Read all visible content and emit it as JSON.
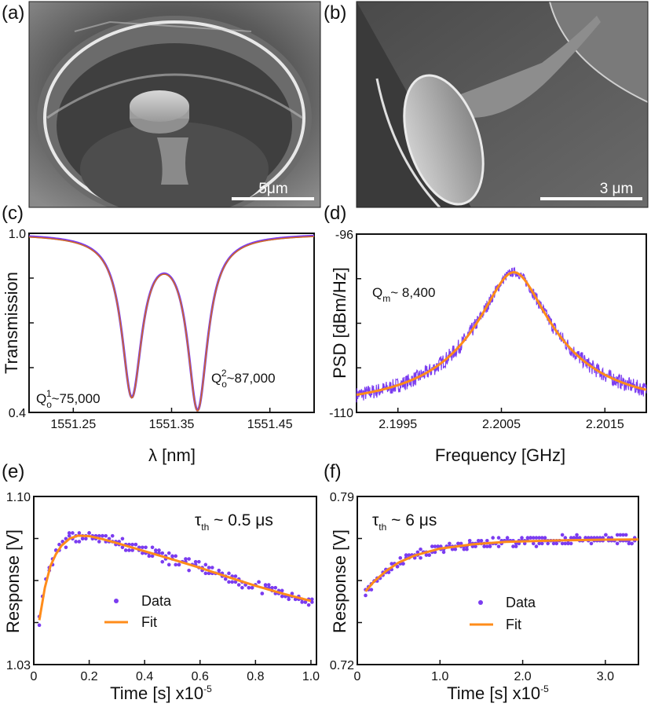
{
  "panels": {
    "a": {
      "label": "(a)",
      "scale_bar": "5μm"
    },
    "b": {
      "label": "(b)",
      "scale_bar": "3 μm"
    },
    "c": {
      "label": "(c)"
    },
    "d": {
      "label": "(d)"
    },
    "e": {
      "label": "(e)"
    },
    "f": {
      "label": "(f)"
    }
  },
  "colors": {
    "data": "#7b3cf0",
    "fit": "#ff8c1a",
    "fit_c": "#d2691e"
  },
  "chart_data": [
    {
      "panel": "c",
      "type": "line",
      "xlabel": "λ [nm]",
      "ylabel": "Transmission",
      "xlim": [
        1551.205,
        1551.495
      ],
      "ylim": [
        0.4,
        1.0
      ],
      "xticks": [
        1551.25,
        1551.35,
        1551.45
      ],
      "xtick_labels": [
        "1551.25",
        "1551.35",
        "1551.45"
      ],
      "yticks": [
        0.4,
        1.0
      ],
      "ytick_labels": [
        "0.4",
        "1.0"
      ],
      "model": {
        "baseline": 1.0,
        "dips": [
          {
            "center": 1551.3095,
            "depth": 0.53,
            "width": 0.0125
          },
          {
            "center": 1551.3765,
            "depth": 0.575,
            "width": 0.0125
          }
        ]
      },
      "annotations": [
        {
          "text_main": "Q",
          "text_sub": "o",
          "text_sup": "1",
          "text_rest": "~75,000"
        },
        {
          "text_main": "Q",
          "text_sub": "o",
          "text_sup": "2",
          "text_rest": "~87,000"
        }
      ]
    },
    {
      "panel": "d",
      "type": "line",
      "xlabel": "Frequency [GHz]",
      "ylabel": "PSD [dBm/Hz]",
      "xlim": [
        2.1991,
        2.2019
      ],
      "ylim": [
        -110,
        -96
      ],
      "xticks": [
        2.1995,
        2.2005,
        2.2015
      ],
      "xtick_labels": [
        "2.1995",
        "2.2005",
        "2.2015"
      ],
      "yticks": [
        -110,
        -96
      ],
      "ytick_labels": [
        "-110",
        "-96"
      ],
      "model": {
        "center": 2.20062,
        "peak_dbm": -99.0,
        "floor_dbm": -109.8,
        "hwhm": 0.00026
      },
      "annotations": [
        {
          "text_main": "Q",
          "text_sub": "m",
          "text_rest": "~ 8,400"
        }
      ]
    },
    {
      "panel": "e",
      "type": "scatter",
      "xlabel": "Time [s]  x10",
      "xlabel_exp": "-5",
      "ylabel": "Response [V]",
      "xlim": [
        0,
        1.02
      ],
      "ylim": [
        1.03,
        1.1
      ],
      "xticks": [
        0,
        0.2,
        0.4,
        0.6,
        0.8,
        1.0
      ],
      "xtick_labels": [
        "0",
        "0.2",
        "0.4",
        "0.6",
        "0.8",
        "1.0"
      ],
      "yticks": [
        1.03,
        1.1
      ],
      "ytick_labels": [
        "1.03",
        "1.10"
      ],
      "fit": [
        [
          0.02,
          1.0485
        ],
        [
          0.04,
          1.062
        ],
        [
          0.06,
          1.071
        ],
        [
          0.08,
          1.076
        ],
        [
          0.1,
          1.0795
        ],
        [
          0.13,
          1.0825
        ],
        [
          0.16,
          1.0837
        ],
        [
          0.2,
          1.0835
        ],
        [
          0.25,
          1.0822
        ],
        [
          0.3,
          1.0806
        ],
        [
          0.4,
          1.0772
        ],
        [
          0.5,
          1.0738
        ],
        [
          0.6,
          1.0703
        ],
        [
          0.7,
          1.0665
        ],
        [
          0.8,
          1.0628
        ],
        [
          0.9,
          1.0595
        ],
        [
          1.0,
          1.0565
        ]
      ],
      "annotations": [
        {
          "text_main": "τ",
          "text_sub": "th",
          "text_rest": " ~ 0.5 μs"
        }
      ],
      "legend": [
        "Data",
        "Fit"
      ]
    },
    {
      "panel": "f",
      "type": "scatter",
      "xlabel": "Time [s]  x10",
      "xlabel_exp": "-5",
      "ylabel": "Response [V]",
      "xlim": [
        0,
        3.4
      ],
      "ylim": [
        0.72,
        0.79
      ],
      "xticks": [
        0,
        1.0,
        2.0,
        3.0
      ],
      "xtick_labels": [
        "0",
        "1.0",
        "2.0",
        "3.0"
      ],
      "yticks": [
        0.72,
        0.79
      ],
      "ytick_labels": [
        "0.72",
        "0.79"
      ],
      "fit": [
        [
          0.1,
          0.7505
        ],
        [
          0.2,
          0.7545
        ],
        [
          0.35,
          0.759
        ],
        [
          0.5,
          0.7625
        ],
        [
          0.7,
          0.7655
        ],
        [
          1.0,
          0.7683
        ],
        [
          1.4,
          0.7701
        ],
        [
          1.8,
          0.7711
        ],
        [
          2.4,
          0.7717
        ],
        [
          3.0,
          0.772
        ],
        [
          3.4,
          0.7721
        ]
      ],
      "annotations": [
        {
          "text_main": "τ",
          "text_sub": "th",
          "text_rest": " ~ 6 μs"
        }
      ],
      "legend": [
        "Data",
        "Fit"
      ]
    }
  ]
}
